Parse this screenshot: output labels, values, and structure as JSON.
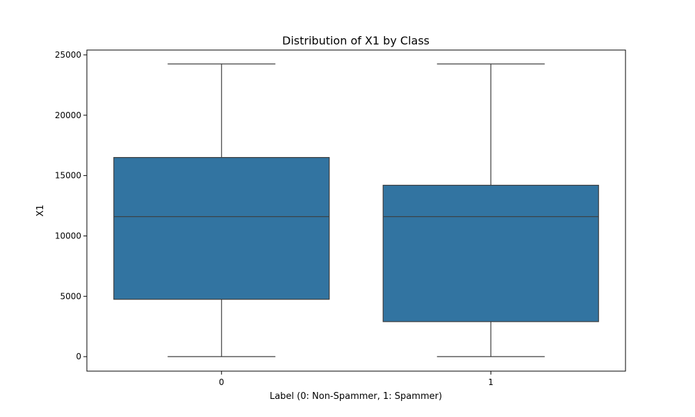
{
  "chart_data": {
    "type": "box",
    "title": "Distribution of X1 by Class",
    "xlabel": "Label (0: Non-Spammer, 1: Spammer)",
    "ylabel": "X1",
    "categories": [
      "0",
      "1"
    ],
    "ylim": [
      -1200,
      25400
    ],
    "yticks": [
      0,
      5000,
      10000,
      15000,
      20000,
      25000
    ],
    "grid": false,
    "box_color": "#3274a1",
    "line_color": "#3d3d3d",
    "boxes": [
      {
        "category": "0",
        "whisker_low": 0,
        "q1": 4750,
        "median": 11600,
        "q3": 16500,
        "whisker_high": 24250
      },
      {
        "category": "1",
        "whisker_low": 0,
        "q1": 2900,
        "median": 11600,
        "q3": 14200,
        "whisker_high": 24250
      }
    ]
  }
}
